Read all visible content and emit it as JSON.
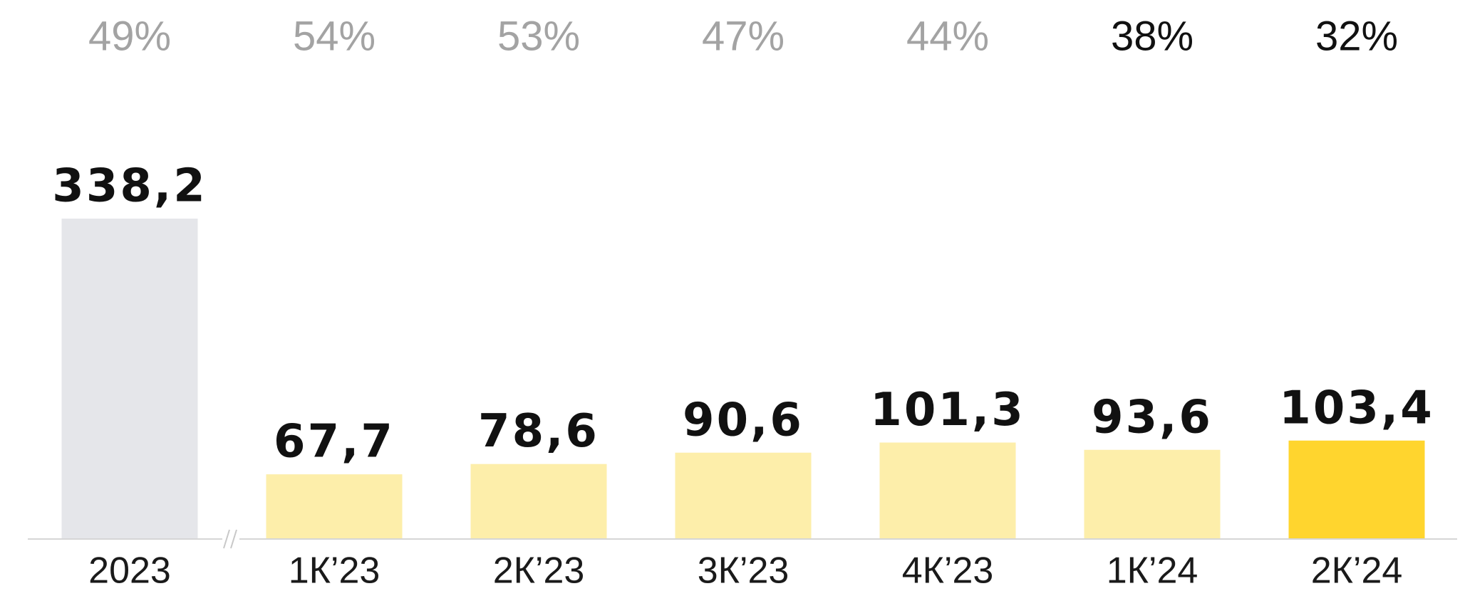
{
  "chart_data": {
    "type": "bar",
    "categories": [
      "2023",
      "1К’23",
      "2К’23",
      "3К’23",
      "4К’23",
      "1К’24",
      "2К’24"
    ],
    "values": [
      338.2,
      67.7,
      78.6,
      90.6,
      101.3,
      93.6,
      103.4
    ],
    "value_labels": [
      "338,2",
      "67,7",
      "78,6",
      "90,6",
      "101,3",
      "93,6",
      "103,4"
    ],
    "colors": [
      "#e5e6ea",
      "#fdeeaa",
      "#fdeeaa",
      "#fdeeaa",
      "#fdeeaa",
      "#fdeeaa",
      "#ffd52e"
    ],
    "annotations": [
      "49%",
      "54%",
      "53%",
      "47%",
      "44%",
      "38%",
      "32%"
    ],
    "annotation_colors": [
      "#a3a3a3",
      "#a3a3a3",
      "#a3a3a3",
      "#a3a3a3",
      "#a3a3a3",
      "#111111",
      "#111111"
    ],
    "ylim": [
      0,
      400
    ]
  }
}
